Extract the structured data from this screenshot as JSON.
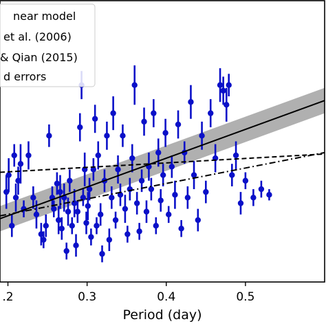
{
  "chart_data": {
    "type": "scatter",
    "xlabel": "Period (day)",
    "ylabel": "",
    "xlim": [
      0.19,
      0.6
    ],
    "ylim": [
      0,
      1
    ],
    "x_tick_labels": [
      {
        "value": 0.2,
        "label": ".2"
      },
      {
        "value": 0.3,
        "label": "0.3"
      },
      {
        "value": 0.4,
        "label": "0.4"
      },
      {
        "value": 0.5,
        "label": "0.5"
      }
    ],
    "legend": {
      "location": "top-left",
      "entries": [
        {
          "label": "near model",
          "style": "solid"
        },
        {
          "label": "et al. (2006)",
          "style": "dashed"
        },
        {
          "label": "& Qian (2015)",
          "style": "dashdot"
        },
        {
          "label": "d errors",
          "style": "errorbar"
        }
      ]
    },
    "grid": false,
    "colors": {
      "points": "#0a10c8",
      "fit": "#000000",
      "band": "#b0b0b0"
    },
    "series": [
      {
        "kind": "linear-fit",
        "line": [
          [
            0.19,
            0.225
          ],
          [
            0.6,
            0.645
          ]
        ],
        "band_half_width": 0.045
      },
      {
        "kind": "dashed-line",
        "line": [
          [
            0.19,
            0.39
          ],
          [
            0.6,
            0.455
          ]
        ]
      },
      {
        "kind": "dashdot-line",
        "line": [
          [
            0.19,
            0.235
          ],
          [
            0.6,
            0.46
          ]
        ]
      },
      {
        "kind": "points",
        "points": [
          [
            0.198,
            0.32,
            0.06
          ],
          [
            0.201,
            0.38,
            0.06
          ],
          [
            0.205,
            0.2,
            0.04
          ],
          [
            0.208,
            0.45,
            0.04
          ],
          [
            0.21,
            0.3,
            0.05
          ],
          [
            0.213,
            0.36,
            0.05
          ],
          [
            0.216,
            0.42,
            0.07
          ],
          [
            0.22,
            0.26,
            0.03
          ],
          [
            0.226,
            0.45,
            0.05
          ],
          [
            0.232,
            0.3,
            0.04
          ],
          [
            0.236,
            0.24,
            0.05
          ],
          [
            0.242,
            0.17,
            0.04
          ],
          [
            0.245,
            0.15,
            0.03
          ],
          [
            0.248,
            0.2,
            0.04
          ],
          [
            0.252,
            0.52,
            0.04
          ],
          [
            0.256,
            0.3,
            0.04
          ],
          [
            0.258,
            0.26,
            0.03
          ],
          [
            0.262,
            0.35,
            0.04
          ],
          [
            0.264,
            0.22,
            0.05
          ],
          [
            0.266,
            0.32,
            0.06
          ],
          [
            0.268,
            0.19,
            0.04
          ],
          [
            0.271,
            0.3,
            0.05
          ],
          [
            0.274,
            0.11,
            0.03
          ],
          [
            0.276,
            0.25,
            0.05
          ],
          [
            0.278,
            0.36,
            0.04
          ],
          [
            0.281,
            0.2,
            0.03
          ],
          [
            0.284,
            0.28,
            0.05
          ],
          [
            0.286,
            0.13,
            0.04
          ],
          [
            0.288,
            0.25,
            0.04
          ],
          [
            0.291,
            0.55,
            0.05
          ],
          [
            0.293,
            0.7,
            0.05
          ],
          [
            0.295,
            0.3,
            0.03
          ],
          [
            0.297,
            0.4,
            0.06
          ],
          [
            0.299,
            0.21,
            0.04
          ],
          [
            0.301,
            0.27,
            0.05
          ],
          [
            0.303,
            0.33,
            0.04
          ],
          [
            0.305,
            0.16,
            0.03
          ],
          [
            0.308,
            0.4,
            0.04
          ],
          [
            0.31,
            0.58,
            0.05
          ],
          [
            0.312,
            0.2,
            0.03
          ],
          [
            0.314,
            0.45,
            0.05
          ],
          [
            0.317,
            0.24,
            0.04
          ],
          [
            0.319,
            0.1,
            0.03
          ],
          [
            0.322,
            0.36,
            0.04
          ],
          [
            0.325,
            0.52,
            0.05
          ],
          [
            0.328,
            0.15,
            0.04
          ],
          [
            0.331,
            0.3,
            0.04
          ],
          [
            0.333,
            0.6,
            0.06
          ],
          [
            0.336,
            0.22,
            0.03
          ],
          [
            0.339,
            0.4,
            0.05
          ],
          [
            0.342,
            0.31,
            0.04
          ],
          [
            0.345,
            0.52,
            0.04
          ],
          [
            0.348,
            0.26,
            0.05
          ],
          [
            0.351,
            0.17,
            0.03
          ],
          [
            0.354,
            0.33,
            0.04
          ],
          [
            0.357,
            0.44,
            0.05
          ],
          [
            0.36,
            0.7,
            0.07
          ],
          [
            0.363,
            0.28,
            0.04
          ],
          [
            0.366,
            0.18,
            0.03
          ],
          [
            0.369,
            0.36,
            0.04
          ],
          [
            0.372,
            0.57,
            0.05
          ],
          [
            0.375,
            0.25,
            0.04
          ],
          [
            0.378,
            0.41,
            0.05
          ],
          [
            0.381,
            0.33,
            0.04
          ],
          [
            0.384,
            0.6,
            0.05
          ],
          [
            0.387,
            0.2,
            0.03
          ],
          [
            0.39,
            0.46,
            0.05
          ],
          [
            0.393,
            0.29,
            0.04
          ],
          [
            0.396,
            0.38,
            0.04
          ],
          [
            0.399,
            0.53,
            0.05
          ],
          [
            0.403,
            0.24,
            0.03
          ],
          [
            0.407,
            0.41,
            0.04
          ],
          [
            0.411,
            0.31,
            0.05
          ],
          [
            0.415,
            0.56,
            0.05
          ],
          [
            0.419,
            0.19,
            0.03
          ],
          [
            0.423,
            0.46,
            0.04
          ],
          [
            0.427,
            0.3,
            0.04
          ],
          [
            0.431,
            0.64,
            0.06
          ],
          [
            0.435,
            0.38,
            0.05
          ],
          [
            0.44,
            0.22,
            0.04
          ],
          [
            0.445,
            0.52,
            0.05
          ],
          [
            0.45,
            0.32,
            0.04
          ],
          [
            0.456,
            0.6,
            0.05
          ],
          [
            0.462,
            0.44,
            0.05
          ],
          [
            0.468,
            0.7,
            0.06
          ],
          [
            0.472,
            0.68,
            0.05
          ],
          [
            0.476,
            0.63,
            0.06
          ],
          [
            0.479,
            0.7,
            0.04
          ],
          [
            0.483,
            0.38,
            0.04
          ],
          [
            0.488,
            0.45,
            0.05
          ],
          [
            0.494,
            0.28,
            0.04
          ],
          [
            0.5,
            0.36,
            0.03
          ],
          [
            0.51,
            0.3,
            0.03
          ],
          [
            0.52,
            0.33,
            0.03
          ],
          [
            0.53,
            0.31,
            0.02
          ]
        ]
      }
    ]
  }
}
